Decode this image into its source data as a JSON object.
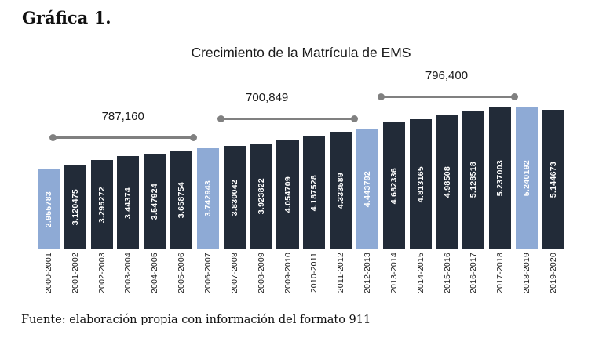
{
  "page": {
    "figure_label": "Gráfica 1.",
    "source_note": "Fuente: elaboración propia con información del formato 911"
  },
  "chart_data": {
    "type": "bar",
    "title": "Crecimiento de la Matrícula de EMS",
    "xlabel": "",
    "ylabel": "",
    "ylim": [
      0,
      5240192
    ],
    "gridlines": false,
    "y_axis_visible": false,
    "x_tick_rotation_deg": 90,
    "categories": [
      "2000-2001",
      "2001-2002",
      "2002-2003",
      "2003-2004",
      "2004-2005",
      "2005-2006",
      "2006-2007",
      "2007-2008",
      "2008-2009",
      "2009-2010",
      "2010-2011",
      "2011-2012",
      "2012-2013",
      "2013-2014",
      "2014-2015",
      "2015-2016",
      "2016-2017",
      "2017-2018",
      "2018-2019",
      "2019-2020"
    ],
    "values": [
      2955783,
      3120475,
      3295272,
      3443740,
      3547924,
      3658754,
      3742943,
      3830042,
      3923822,
      4054709,
      4187528,
      4333589,
      4443792,
      4682336,
      4813165,
      4985080,
      5128518,
      5237003,
      5240192,
      5144673
    ],
    "value_labels": [
      "2.955783",
      "3.120475",
      "3.295272",
      "3.44374",
      "3.547924",
      "3.658754",
      "3.742943",
      "3.830042",
      "3.923822",
      "4.054709",
      "4.187528",
      "4.333589",
      "4.443792",
      "4.682336",
      "4.813165",
      "4.98508",
      "5.128518",
      "5.237003",
      "5.240192",
      "5.144673"
    ],
    "highlight_indices": [
      0,
      6,
      12,
      18
    ],
    "annotations": [
      {
        "label": "787,160",
        "from_index": 0,
        "to_index": 6,
        "x1_pct": 3.2,
        "x2_pct": 29.8,
        "label_x_pct": 16.5
      },
      {
        "label": "700,849",
        "from_index": 6,
        "to_index": 12,
        "x1_pct": 34.9,
        "x2_pct": 60.1,
        "label_x_pct": 43.6
      },
      {
        "label": "796,400",
        "from_index": 12,
        "to_index": 18,
        "x1_pct": 65.0,
        "x2_pct": 90.3,
        "label_x_pct": 77.4
      }
    ],
    "colors": {
      "bar": "#222B38",
      "highlight": "#8EAAD5",
      "connector": "#808080",
      "value_label": "#FFFFFF",
      "baseline": "#D9D9D9"
    }
  }
}
